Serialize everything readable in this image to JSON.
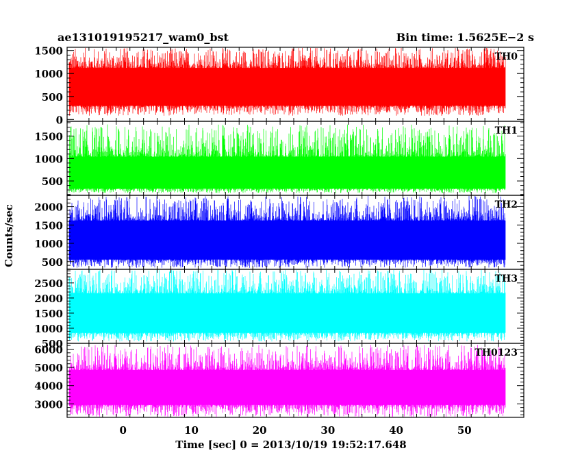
{
  "header": {
    "title": "ae131019195217_wam0_bst",
    "bin_time": "Bin time: 1.5625E−2 s"
  },
  "chart_data": {
    "type": "line",
    "xlabel": "Time [sec] 0 = 2013/10/19 19:52:17.648",
    "ylabel": "Counts/sec",
    "xlim": [
      -8.2,
      58.7
    ],
    "x_ticks": [
      0,
      10,
      20,
      30,
      40,
      50
    ],
    "x_tick_labels": [
      "0",
      "10",
      "20",
      "30",
      "40",
      "50"
    ],
    "x_data_range": [
      -7.9,
      56.0
    ],
    "panels": [
      {
        "name": "TH0",
        "color": "#ff0000",
        "ylim": [
          -40,
          1570
        ],
        "y_ticks": [
          0,
          500,
          1000,
          1500
        ],
        "y_tick_labels": [
          "0",
          "500",
          "1000",
          "1500"
        ],
        "series": {
          "mean": 680,
          "band_low": 300,
          "band_high": 1120,
          "min": 80,
          "max": 1570
        }
      },
      {
        "name": "TH1",
        "color": "#00ff00",
        "ylim": [
          180,
          1830
        ],
        "y_ticks": [
          500,
          1000,
          1500
        ],
        "y_tick_labels": [
          "500",
          "1000",
          "1500"
        ],
        "series": {
          "mean": 660,
          "band_low": 330,
          "band_high": 1040,
          "min": 230,
          "max": 1760
        }
      },
      {
        "name": "TH2",
        "color": "#0000ff",
        "ylim": [
          290,
          2310
        ],
        "y_ticks": [
          500,
          1000,
          1500,
          2000
        ],
        "y_tick_labels": [
          "500",
          "1000",
          "1500",
          "2000"
        ],
        "series": {
          "mean": 1050,
          "band_low": 560,
          "band_high": 1620,
          "min": 330,
          "max": 2300
        }
      },
      {
        "name": "TH3",
        "color": "#00ffff",
        "ylim": [
          500,
          2950
        ],
        "y_ticks": [
          500,
          1000,
          1500,
          2000,
          2500
        ],
        "y_tick_labels": [
          "500",
          "1000",
          "1500",
          "2000",
          "2500"
        ],
        "series": {
          "mean": 1450,
          "band_low": 850,
          "band_high": 2150,
          "min": 560,
          "max": 2950
        }
      },
      {
        "name": "TH0123",
        "color": "#ff00ff",
        "ylim": [
          2260,
          6320
        ],
        "y_ticks": [
          3000,
          4000,
          5000,
          6000
        ],
        "y_tick_labels": [
          "3000",
          "4000",
          "5000",
          "6000"
        ],
        "series": {
          "mean": 3800,
          "band_low": 2950,
          "band_high": 4850,
          "min": 2270,
          "max": 6250
        }
      }
    ]
  }
}
